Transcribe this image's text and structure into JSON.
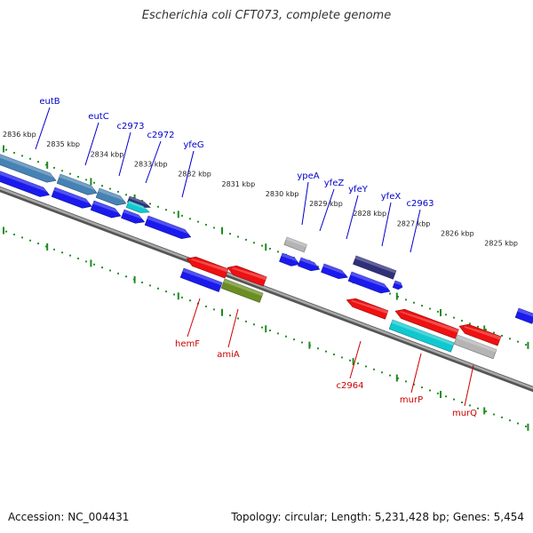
{
  "title": "Escherichia coli CFT073, complete genome",
  "footer": {
    "accession": "Accession: NC_004431",
    "summary": "Topology: circular; Length: 5,231,428 bp; Genes: 5,454"
  },
  "colors": {
    "background": "#ffffff",
    "backbone": "#808080",
    "tick": "#1e8c1e",
    "forward_label": "#0000cc",
    "reverse_label": "#cc0000",
    "gene_blue": "#1a1aee",
    "gene_steel": "#4682b4",
    "gene_red": "#ee1111",
    "gene_olive": "#6b8e23",
    "gene_cyan": "#10c8d0",
    "gene_gray": "#b4b4b4",
    "gene_navy": "#30307a"
  },
  "scale": {
    "unit": "kbp",
    "labels": [
      "2836 kbp",
      "2835 kbp",
      "2834 kbp",
      "2833 kbp",
      "2832 kbp",
      "2831 kbp",
      "2830 kbp",
      "2829 kbp",
      "2828 kbp",
      "2827 kbp",
      "2826 kbp",
      "2825 kbp"
    ]
  },
  "forward_genes": [
    "eutB",
    "eutC",
    "c2973",
    "c2972",
    "yfeG",
    "ypeA",
    "yfeZ",
    "yfeY",
    "yfeX",
    "c2963"
  ],
  "reverse_genes": [
    "hemF",
    "amiA",
    "c2964",
    "murP",
    "murQ"
  ]
}
